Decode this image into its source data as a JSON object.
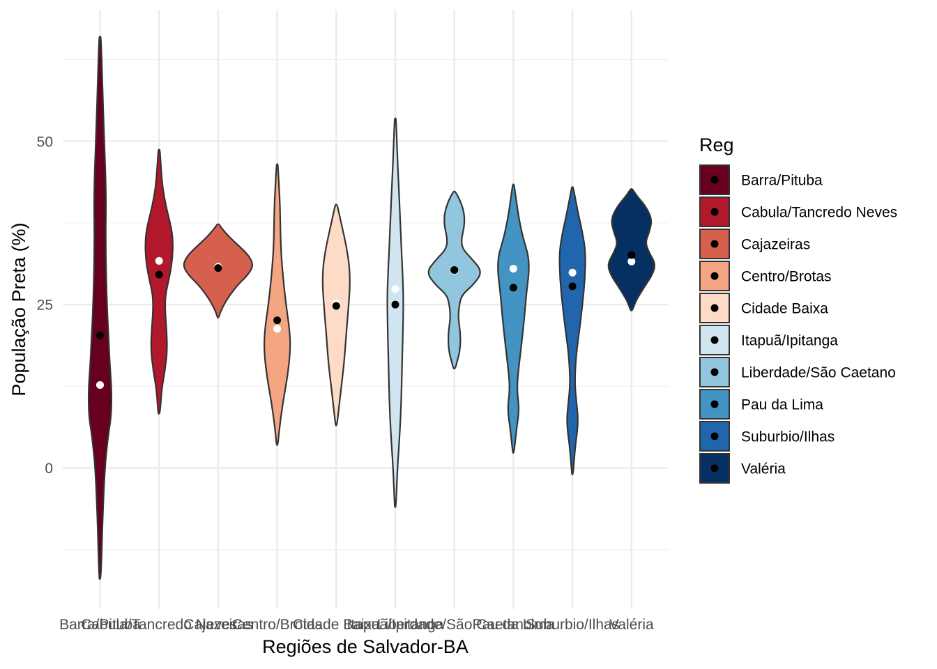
{
  "chart_data": {
    "type": "violin",
    "title": "",
    "xlabel": "Regiões de Salvador-BA",
    "ylabel": "População Preta (%)",
    "ylim": [
      -21,
      71
    ],
    "y_ticks": [
      0,
      25,
      50
    ],
    "y_tick_labels": [
      "0",
      "25",
      "50"
    ],
    "grid": true,
    "legend": {
      "title": "Reg",
      "position": "right"
    },
    "categories": [
      "Barra/Pituba",
      "Cabula/Tancredo Neves",
      "Cajazeiras",
      "Centro/Brotas",
      "Cidade Baixa",
      "Itapuã/Ipitanga",
      "Liberdade/São Caetano",
      "Pau da Lima",
      "Suburbio/Ilhas",
      "Valéria"
    ],
    "series": [
      {
        "name": "Barra/Pituba",
        "color": "#67001F",
        "mean": 12.7,
        "median": 20.3,
        "density": [
          [
            -17,
            0.3
          ],
          [
            -8,
            0.8
          ],
          [
            0,
            1.5
          ],
          [
            5,
            2.6
          ],
          [
            8,
            3.6
          ],
          [
            12,
            3.7
          ],
          [
            16,
            3.1
          ],
          [
            20,
            2.7
          ],
          [
            24,
            2.3
          ],
          [
            30,
            1.9
          ],
          [
            36,
            1.8
          ],
          [
            40,
            1.9
          ],
          [
            44,
            1.8
          ],
          [
            48,
            1.5
          ],
          [
            52,
            1.2
          ],
          [
            58,
            0.8
          ],
          [
            66,
            0.3
          ]
        ]
      },
      {
        "name": "Cabula/Tancredo Neves",
        "color": "#B2182B",
        "mean": 31.7,
        "median": 29.6,
        "density": [
          [
            8.3,
            0.3
          ],
          [
            12,
            0.8
          ],
          [
            15,
            1.9
          ],
          [
            18,
            2.6
          ],
          [
            21,
            2.4
          ],
          [
            24,
            1.9
          ],
          [
            26.5,
            2.0
          ],
          [
            29,
            3.2
          ],
          [
            32,
            4.3
          ],
          [
            35,
            4.4
          ],
          [
            37,
            3.8
          ],
          [
            40,
            2.2
          ],
          [
            43,
            1.1
          ],
          [
            46,
            0.6
          ],
          [
            48.7,
            0.25
          ]
        ]
      },
      {
        "name": "Cajazeiras",
        "color": "#D6604D",
        "mean": 30.8,
        "median": 30.6,
        "density": [
          [
            23,
            0.2
          ],
          [
            24,
            0.8
          ],
          [
            26,
            3.0
          ],
          [
            28,
            6.2
          ],
          [
            29.5,
            9.4
          ],
          [
            31,
            11.3
          ],
          [
            32.5,
            9.8
          ],
          [
            34,
            6.6
          ],
          [
            35.5,
            3.2
          ],
          [
            36.8,
            1.0
          ],
          [
            37.3,
            0.3
          ]
        ]
      },
      {
        "name": "Centro/Brotas",
        "color": "#F4A582",
        "mean": 21.3,
        "median": 22.6,
        "density": [
          [
            3.5,
            0.2
          ],
          [
            6,
            0.7
          ],
          [
            10,
            1.8
          ],
          [
            14,
            3.3
          ],
          [
            18,
            4.2
          ],
          [
            21,
            4.0
          ],
          [
            25,
            2.8
          ],
          [
            29,
            1.9
          ],
          [
            33,
            1.2
          ],
          [
            37,
            1.0
          ],
          [
            40,
            0.9
          ],
          [
            43,
            0.6
          ],
          [
            46.5,
            0.2
          ]
        ]
      },
      {
        "name": "Cidade Baixa",
        "color": "#FDDBC7",
        "mean": 25.2,
        "median": 24.8,
        "density": [
          [
            6.5,
            0.2
          ],
          [
            9,
            0.8
          ],
          [
            12,
            1.5
          ],
          [
            16,
            2.5
          ],
          [
            20,
            3.1
          ],
          [
            24,
            3.8
          ],
          [
            28,
            4.4
          ],
          [
            31,
            4.2
          ],
          [
            34,
            3.2
          ],
          [
            37,
            1.8
          ],
          [
            40.3,
            0.3
          ]
        ]
      },
      {
        "name": "Itapuã/Ipitanga",
        "color": "#D1E5F0",
        "mean": 27.4,
        "median": 25.0,
        "density": [
          [
            -6,
            0.2
          ],
          [
            0,
            0.7
          ],
          [
            5,
            1.4
          ],
          [
            10,
            1.9
          ],
          [
            15,
            2.1
          ],
          [
            20,
            2.4
          ],
          [
            26,
            2.6
          ],
          [
            30,
            2.3
          ],
          [
            35,
            1.8
          ],
          [
            40,
            1.4
          ],
          [
            45,
            0.9
          ],
          [
            50,
            0.5
          ],
          [
            53.5,
            0.2
          ]
        ]
      },
      {
        "name": "Liberdade/São Caetano",
        "color": "#92C5DE",
        "mean": 30.2,
        "median": 30.3,
        "density": [
          [
            15.2,
            0.3
          ],
          [
            16.5,
            1.0
          ],
          [
            18,
            1.8
          ],
          [
            20.5,
            2.0
          ],
          [
            23,
            1.2
          ],
          [
            25,
            1.6
          ],
          [
            26.5,
            2.4
          ],
          [
            28,
            6.0
          ],
          [
            30,
            9.0
          ],
          [
            32,
            5.6
          ],
          [
            33.5,
            2.6
          ],
          [
            35,
            2.2
          ],
          [
            37,
            3.2
          ],
          [
            39,
            3.2
          ],
          [
            41,
            1.8
          ],
          [
            42.3,
            0.3
          ]
        ]
      },
      {
        "name": "Pau da Lima",
        "color": "#4393C3",
        "mean": 30.5,
        "median": 27.6,
        "density": [
          [
            2.3,
            0.2
          ],
          [
            6,
            1.0
          ],
          [
            9,
            1.9
          ],
          [
            12,
            1.1
          ],
          [
            15,
            1.6
          ],
          [
            19,
            2.6
          ],
          [
            23,
            3.5
          ],
          [
            27,
            4.2
          ],
          [
            30,
            5.0
          ],
          [
            32.5,
            4.8
          ],
          [
            35,
            3.2
          ],
          [
            38,
            1.8
          ],
          [
            41,
            0.9
          ],
          [
            43.4,
            0.2
          ]
        ]
      },
      {
        "name": "Suburbio/Ilhas",
        "color": "#2166AC",
        "mean": 29.9,
        "median": 27.8,
        "density": [
          [
            -1,
            0.2
          ],
          [
            3,
            0.8
          ],
          [
            7,
            1.9
          ],
          [
            10,
            1.3
          ],
          [
            13,
            0.7
          ],
          [
            17,
            1.1
          ],
          [
            21,
            2.2
          ],
          [
            25,
            3.2
          ],
          [
            29,
            4.0
          ],
          [
            33,
            4.2
          ],
          [
            36,
            3.2
          ],
          [
            39,
            1.8
          ],
          [
            41.5,
            0.8
          ],
          [
            43,
            0.2
          ]
        ]
      },
      {
        "name": "Valéria",
        "color": "#053061",
        "mean": 31.6,
        "median": 32.6,
        "density": [
          [
            24.1,
            0.3
          ],
          [
            25.5,
            1.3
          ],
          [
            27.5,
            3.8
          ],
          [
            29.5,
            6.6
          ],
          [
            31.2,
            7.7
          ],
          [
            33,
            5.6
          ],
          [
            34.5,
            4.4
          ],
          [
            36,
            5.6
          ],
          [
            38,
            6.6
          ],
          [
            40,
            4.6
          ],
          [
            41.7,
            1.6
          ],
          [
            42.7,
            0.3
          ]
        ]
      }
    ]
  }
}
